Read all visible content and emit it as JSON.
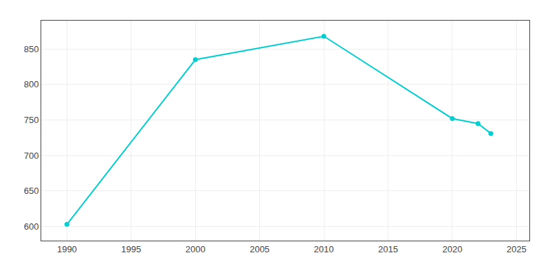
{
  "chart_data": {
    "type": "line",
    "x": [
      1990,
      2000,
      2010,
      2020,
      2022,
      2023
    ],
    "values": [
      603,
      835,
      868,
      752,
      745,
      731
    ],
    "color": "#00CED1",
    "marker": "circle",
    "xlim": [
      1988,
      2026
    ],
    "ylim": [
      580,
      890
    ],
    "xticks": [
      1990,
      1995,
      2000,
      2005,
      2010,
      2015,
      2020,
      2025
    ],
    "yticks": [
      600,
      650,
      700,
      750,
      800,
      850
    ],
    "grid": true
  }
}
